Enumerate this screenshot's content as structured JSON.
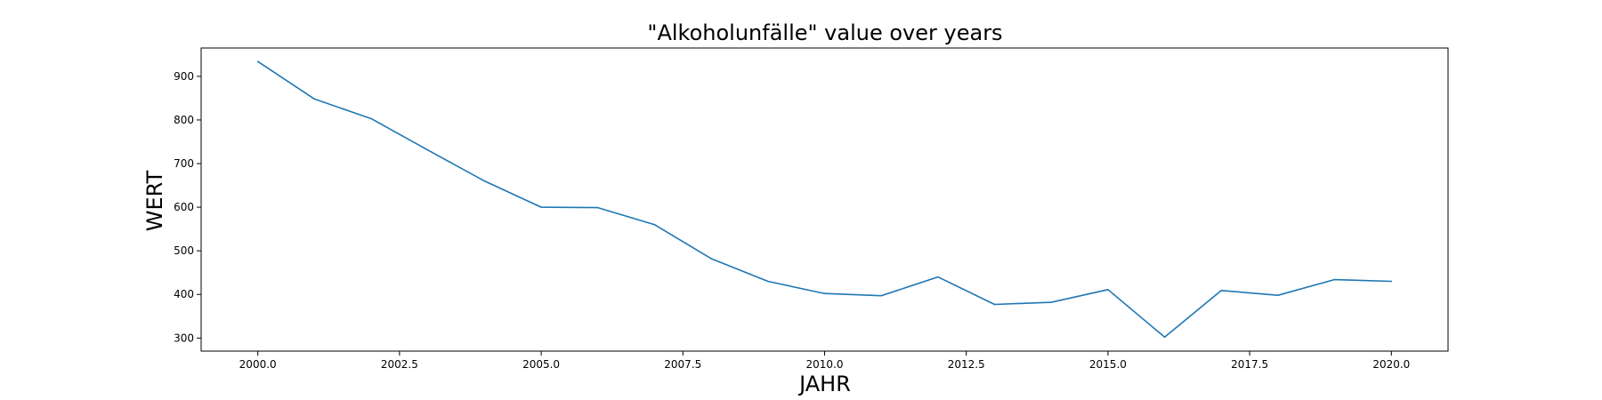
{
  "chart_data": {
    "type": "line",
    "title": "\"Alkoholunfälle\" value over years",
    "xlabel": "JAHR",
    "ylabel": "WERT",
    "xlim": [
      1999,
      2021
    ],
    "ylim": [
      270,
      965
    ],
    "x_ticks": [
      2000.0,
      2002.5,
      2005.0,
      2007.5,
      2010.0,
      2012.5,
      2015.0,
      2017.5,
      2020.0
    ],
    "x_tick_labels": [
      "2000.0",
      "2002.5",
      "2005.0",
      "2007.5",
      "2010.0",
      "2012.5",
      "2015.0",
      "2017.5",
      "2020.0"
    ],
    "y_ticks": [
      300,
      400,
      500,
      600,
      700,
      800,
      900
    ],
    "y_tick_labels": [
      "300",
      "400",
      "500",
      "600",
      "700",
      "800",
      "900"
    ],
    "grid": false,
    "line_color": "#1f77b4",
    "series": [
      {
        "x": [
          2000,
          2001,
          2002,
          2003,
          2004,
          2005,
          2006,
          2007,
          2008,
          2009,
          2010,
          2011,
          2012,
          2013,
          2014,
          2015,
          2016,
          2017,
          2018,
          2019,
          2020
        ],
        "values": [
          934,
          848,
          803,
          731,
          660,
          600,
          599,
          560,
          482,
          430,
          402,
          397,
          440,
          377,
          382,
          411,
          302,
          409,
          398,
          434,
          430
        ]
      }
    ]
  }
}
